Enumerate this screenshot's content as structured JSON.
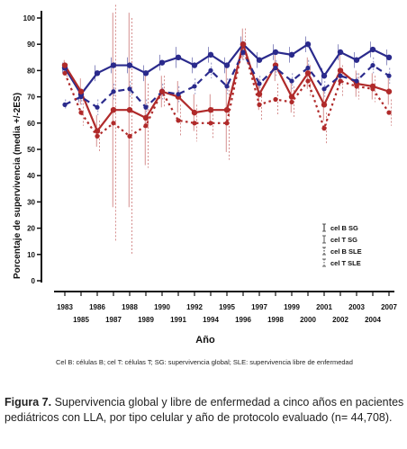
{
  "chart_data": {
    "type": "line",
    "ylabel": "Porcentaje de supervivencia  (media +/-2ES)",
    "xlabel": "Año",
    "ylim": [
      0,
      100
    ],
    "yticks": [
      0,
      10,
      20,
      30,
      40,
      50,
      60,
      70,
      80,
      90,
      100
    ],
    "x_top_row": [
      "1983",
      "1986",
      "1988",
      "1990",
      "1992",
      "1995",
      "1997",
      "1999",
      "2001",
      "2003",
      "2007"
    ],
    "x_bottom_row": [
      "1985",
      "1987",
      "1989",
      "1991",
      "1994",
      "1996",
      "1998",
      "2000",
      "2002",
      "2004"
    ],
    "categories": [
      "1983",
      "1985",
      "1986",
      "1987",
      "1988",
      "1989",
      "1990",
      "1991",
      "1992",
      "1994",
      "1995",
      "1996",
      "1997",
      "1998",
      "1999",
      "2000",
      "2001",
      "2002",
      "2003",
      "2004",
      "2007"
    ],
    "series": [
      {
        "name": "cel B SG",
        "color": "#2a2a8c",
        "style": "solid",
        "values": [
          81,
          71,
          79,
          82,
          82,
          79,
          83,
          85,
          82,
          86,
          82,
          90,
          84,
          87,
          86,
          90,
          78,
          87,
          84,
          88,
          85
        ],
        "err": [
          2,
          3,
          3,
          3,
          3,
          3,
          3,
          4,
          3,
          3,
          3,
          3,
          3,
          3,
          3,
          3,
          3,
          3,
          3,
          3,
          3
        ]
      },
      {
        "name": "cel T SG",
        "color": "#b02a2a",
        "style": "solid",
        "values": [
          82,
          72,
          57,
          65,
          65,
          62,
          72,
          70,
          64,
          65,
          65,
          90,
          71,
          82,
          70,
          79,
          67,
          80,
          75,
          74,
          72
        ],
        "err": [
          2,
          5,
          6,
          37,
          37,
          18,
          6,
          6,
          7,
          6,
          16,
          6,
          6,
          6,
          6,
          6,
          6,
          6,
          5,
          5,
          5
        ]
      },
      {
        "name": "cel B SLE",
        "color": "#2a2a8c",
        "style": "dashed",
        "values": [
          67,
          70,
          66,
          72,
          73,
          66,
          72,
          71,
          74,
          80,
          74,
          87,
          75,
          81,
          76,
          81,
          73,
          78,
          76,
          82,
          78
        ],
        "err": [
          2,
          3,
          3,
          3,
          3,
          3,
          3,
          3,
          3,
          3,
          3,
          3,
          3,
          3,
          3,
          3,
          3,
          3,
          3,
          3,
          3
        ]
      },
      {
        "name": "cel T SLE",
        "color": "#b02a2a",
        "style": "dotted",
        "values": [
          79,
          64,
          55,
          60,
          55,
          59,
          72,
          61,
          60,
          60,
          60,
          90,
          67,
          69,
          68,
          76,
          58,
          76,
          74,
          73,
          64
        ],
        "err": [
          2,
          5,
          6,
          45,
          45,
          16,
          6,
          6,
          7,
          6,
          14,
          6,
          6,
          6,
          6,
          6,
          6,
          6,
          5,
          5,
          5
        ]
      }
    ],
    "legend": {
      "position": "right-middle"
    },
    "grid": false
  },
  "footnote": "Cel B: células B; cel T: células T; SG: supervivencia global; SLE: supervivencia libre de enfermedad",
  "caption": {
    "label": "Figura 7.",
    "text": " Supervivencia global y libre de enfermedad a cinco años en pacientes pediátricos con LLA, por tipo celular y año de protocolo evaluado (n= 44,708)."
  }
}
